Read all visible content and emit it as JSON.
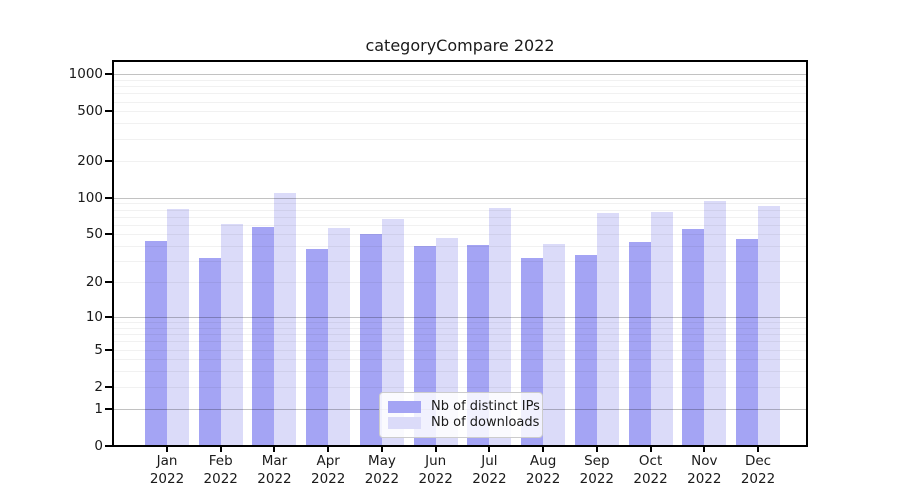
{
  "title": "categoryCompare 2022",
  "chart_data": {
    "type": "bar",
    "title": "categoryCompare 2022",
    "categories": [
      "Jan 2022",
      "Feb 2022",
      "Mar 2022",
      "Apr 2022",
      "May 2022",
      "Jun 2022",
      "Jul 2022",
      "Aug 2022",
      "Sep 2022",
      "Oct 2022",
      "Nov 2022",
      "Dec 2022"
    ],
    "series": [
      {
        "name": "Nb of distinct IPs",
        "color": "#a4a4f4",
        "values": [
          44,
          32,
          58,
          38,
          50,
          40,
          41,
          32,
          34,
          43,
          55,
          46
        ]
      },
      {
        "name": "Nb of downloads",
        "color": "#dbdbf9",
        "values": [
          81,
          61,
          109,
          56,
          67,
          47,
          83,
          42,
          75,
          76,
          94,
          85
        ]
      }
    ],
    "xlabel": "",
    "ylabel": "",
    "yscale": "log1p",
    "ylim": [
      0,
      1270
    ],
    "y_ticks": [
      0,
      1,
      2,
      5,
      10,
      20,
      50,
      100,
      200,
      500,
      1000
    ],
    "y_tick_labels": [
      "0",
      "1",
      "2",
      "5",
      "10",
      "20",
      "50",
      "100",
      "200",
      "500",
      "1000"
    ],
    "y_major_gridlines": [
      1,
      10,
      100,
      1000
    ],
    "y_minor_gridlines": [
      2,
      3,
      4,
      5,
      6,
      7,
      8,
      9,
      20,
      30,
      40,
      50,
      60,
      70,
      80,
      90,
      200,
      300,
      400,
      500,
      600,
      700,
      800,
      900
    ],
    "grid": true,
    "legend_position": "lower center"
  },
  "colors": {
    "major_grid": "rgba(0,0,0,0.24)",
    "minor_grid": "rgba(0,0,0,0.055)",
    "spine": "#000000",
    "legend_border": "#cccccc"
  }
}
